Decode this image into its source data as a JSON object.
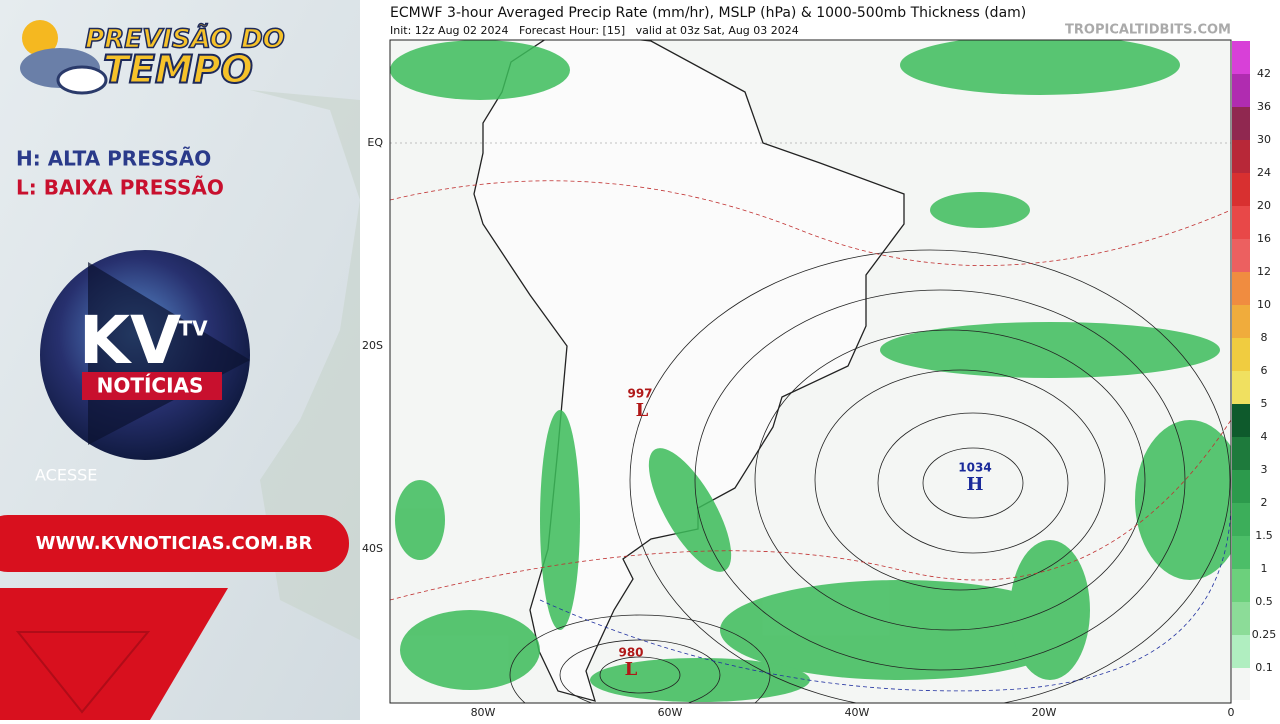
{
  "branding": {
    "title_line1": "PREVISÃO DO",
    "title_line2": "TEMPO",
    "legend_high": "H: ALTA PRESSÃO",
    "legend_low": "L: BAIXA PRESSÃO",
    "logo_main": "KV",
    "logo_sup": "TV",
    "logo_sub": "NOTÍCIAS",
    "cta": "ACESSE",
    "url": "WWW.KVNOTICIAS.COM.BR"
  },
  "map": {
    "title": "ECMWF 3-hour Averaged Precip Rate (mm/hr), MSLP (hPa) & 1000-500mb Thickness (dam)",
    "subtitle": "Init: 12z Aug 02 2024   Forecast Hour: [15]   valid at 03z Sat, Aug 03 2024",
    "source": "TROPICALTIDBITS.COM",
    "lat_labels": [
      "EQ",
      "20S",
      "40S"
    ],
    "lon_labels": [
      "80W",
      "60W",
      "40W",
      "20W",
      "0"
    ],
    "pressure_systems": [
      {
        "symbol": "H",
        "value": "1034"
      },
      {
        "symbol": "L",
        "value": "997"
      },
      {
        "symbol": "L",
        "value": "980"
      }
    ],
    "colorbar": {
      "labels": [
        "42",
        "36",
        "30",
        "24",
        "20",
        "16",
        "12",
        "10",
        "8",
        "6",
        "5",
        "4",
        "3",
        "2",
        "1.5",
        "1",
        "0.5",
        "0.25",
        "0.1"
      ],
      "colors": [
        "#d840d8",
        "#b02cb0",
        "#902850",
        "#b82838",
        "#d83030",
        "#e84848",
        "#ec6060",
        "#f08c40",
        "#f0ac3c",
        "#f0cc40",
        "#f0e060",
        "#0e5a2c",
        "#1e7a3c",
        "#2c9a4c",
        "#3cae5a",
        "#4cbe68",
        "#6cd07c",
        "#8cdc98",
        "#b0eec0"
      ]
    }
  }
}
